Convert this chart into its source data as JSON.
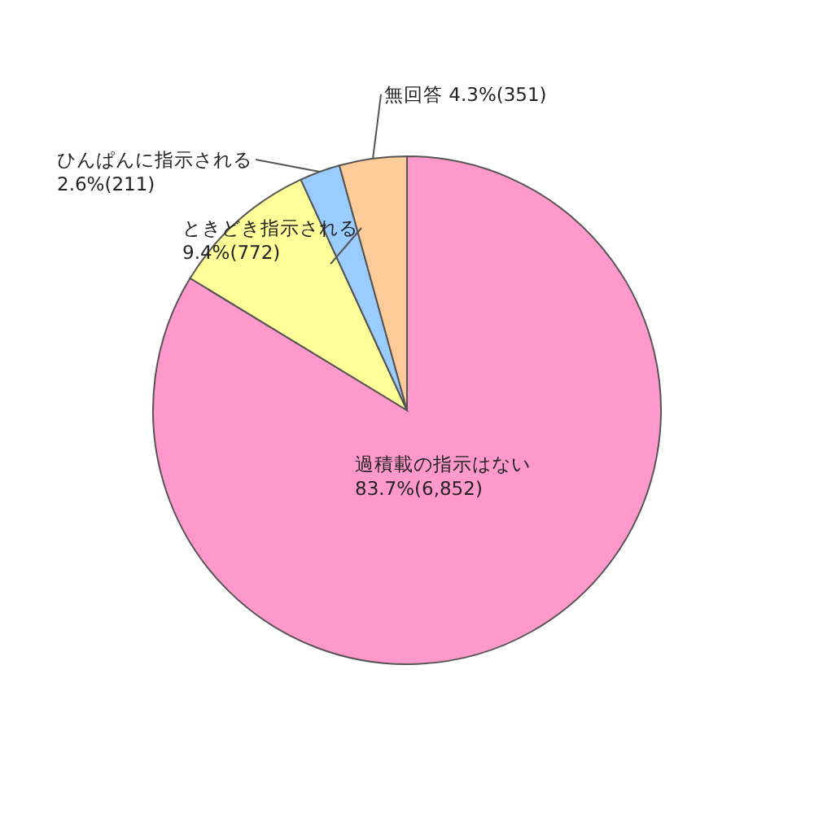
{
  "chart_data": {
    "type": "pie",
    "categories": [
      "過積載の指示はない",
      "ときどき指示される",
      "ひんぱんに指示される",
      "無回答"
    ],
    "values": [
      6852,
      772,
      211,
      351
    ],
    "value_labels": [
      "83.7%(6,852)",
      "9.4%(772)",
      "2.6%(211)",
      "4.3%(351)"
    ],
    "colors": [
      "#ff99cc",
      "#ffff99",
      "#99ccff",
      "#ffcc99"
    ]
  }
}
